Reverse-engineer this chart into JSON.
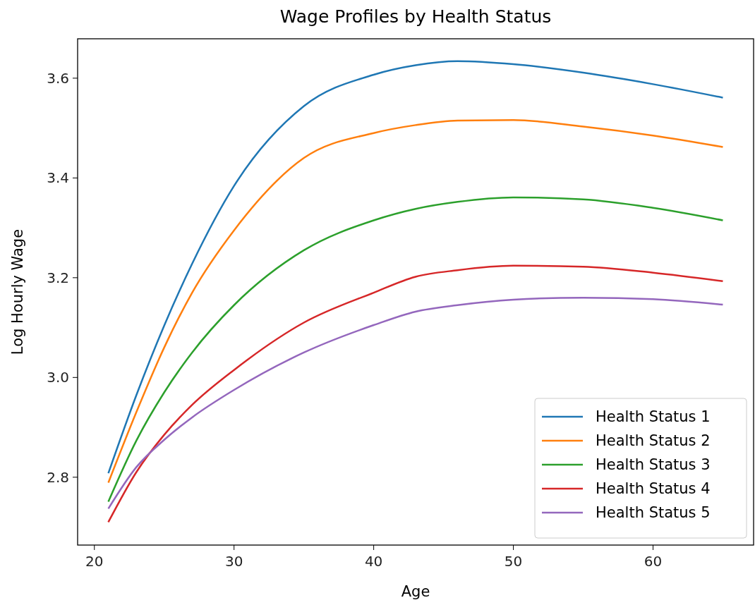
{
  "chart_data": {
    "type": "line",
    "title": "Wage Profiles by Health Status",
    "xlabel": "Age",
    "ylabel": "Log Hourly Wage",
    "x": [
      21,
      23,
      25,
      27,
      30,
      35,
      40,
      43,
      46,
      50,
      55,
      60,
      65
    ],
    "series": [
      {
        "name": "Health Status 1",
        "color": "#1f77b4",
        "values": [
          2.808,
          2.964,
          3.104,
          3.228,
          3.384,
          3.544,
          3.607,
          3.626,
          3.634,
          3.628,
          3.611,
          3.588,
          3.561
        ]
      },
      {
        "name": "Health Status 2",
        "color": "#ff7f0e",
        "values": [
          2.789,
          2.93,
          3.06,
          3.17,
          3.295,
          3.44,
          3.49,
          3.506,
          3.515,
          3.516,
          3.503,
          3.485,
          3.462
        ]
      },
      {
        "name": "Health Status 3",
        "color": "#2ca02c",
        "values": [
          2.751,
          2.873,
          2.97,
          3.05,
          3.145,
          3.255,
          3.315,
          3.338,
          3.352,
          3.361,
          3.357,
          3.34,
          3.315
        ]
      },
      {
        "name": "Health Status 4",
        "color": "#d62728",
        "values": [
          2.71,
          2.81,
          2.885,
          2.945,
          3.015,
          3.11,
          3.17,
          3.202,
          3.215,
          3.224,
          3.222,
          3.21,
          3.193
        ]
      },
      {
        "name": "Health Status 5",
        "color": "#9467bd",
        "values": [
          2.737,
          2.82,
          2.875,
          2.92,
          2.975,
          3.05,
          3.105,
          3.132,
          3.145,
          3.156,
          3.16,
          3.157,
          3.146
        ]
      }
    ],
    "xlim": [
      18.8,
      67.2
    ],
    "ylim": [
      2.664,
      3.679
    ],
    "xticks": [
      20,
      30,
      40,
      50,
      60
    ],
    "yticks": [
      {
        "value": 2.8,
        "label": "2.8"
      },
      {
        "value": 3.0,
        "label": "3.0"
      },
      {
        "value": 3.2,
        "label": "3.2"
      },
      {
        "value": 3.4,
        "label": "3.4"
      },
      {
        "value": 3.6,
        "label": "3.6"
      }
    ],
    "legend": "bottom right",
    "grid": false,
    "marker": "none",
    "line_style": "solid"
  }
}
